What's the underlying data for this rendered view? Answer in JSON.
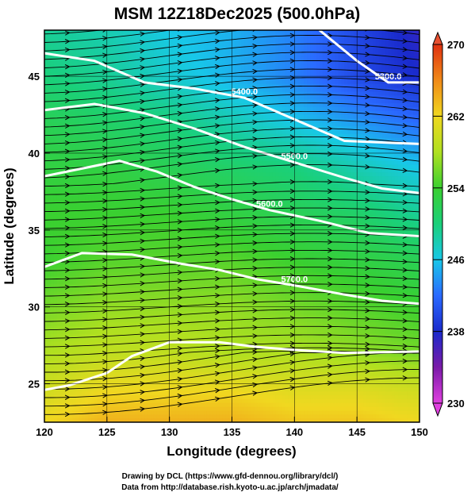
{
  "chart_data": {
    "type": "heatmap",
    "title": "MSM 12Z18Dec2025 (500.0hPa)",
    "xlabel": "Longitude (degrees)",
    "ylabel": "Latitude  (degrees)",
    "xlim": [
      120,
      150
    ],
    "ylim": [
      22.5,
      48
    ],
    "x_ticks": [
      "120",
      "125",
      "130",
      "135",
      "140",
      "145",
      "150"
    ],
    "y_ticks": [
      "25",
      "30",
      "35",
      "40",
      "45"
    ],
    "colorbar": {
      "min": 230,
      "max": 270,
      "ticks": [
        "230",
        "238",
        "246",
        "254",
        "262",
        "270"
      ]
    },
    "temperature_field": [
      {
        "lat": 48,
        "values": [
          249,
          248,
          246,
          245,
          243,
          240,
          237
        ]
      },
      {
        "lat": 45,
        "values": [
          250,
          249,
          247,
          245,
          243,
          240,
          238
        ]
      },
      {
        "lat": 42,
        "values": [
          252,
          251,
          250,
          248,
          246,
          244,
          242
        ]
      },
      {
        "lat": 39,
        "values": [
          253,
          253,
          252,
          251,
          250,
          248,
          246
        ]
      },
      {
        "lat": 36,
        "values": [
          254,
          254,
          254,
          253,
          252,
          251,
          249
        ]
      },
      {
        "lat": 33,
        "values": [
          254,
          255,
          255,
          255,
          254,
          253,
          252
        ]
      },
      {
        "lat": 30,
        "values": [
          256,
          257,
          257,
          257,
          256,
          255,
          254
        ]
      },
      {
        "lat": 27,
        "values": [
          258,
          259,
          259,
          258,
          258,
          257,
          256
        ]
      },
      {
        "lat": 24.5,
        "values": [
          260,
          262,
          262,
          262,
          261,
          261,
          260
        ]
      },
      {
        "lat": 22.5,
        "values": [
          262,
          264,
          264,
          264,
          263,
          263,
          262
        ]
      }
    ],
    "contours": [
      {
        "label": "5300.0",
        "points": [
          [
            142,
            48
          ],
          [
            145,
            46
          ],
          [
            147.5,
            44.6
          ],
          [
            150,
            44.6
          ]
        ]
      },
      {
        "label": "5400.0",
        "points": [
          [
            120,
            46.5
          ],
          [
            124,
            46
          ],
          [
            128,
            44.6
          ],
          [
            132,
            44.2
          ],
          [
            136,
            43.6
          ],
          [
            140,
            42.2
          ],
          [
            144,
            40.8
          ],
          [
            150,
            40.6
          ]
        ]
      },
      {
        "label": "5500.0",
        "points": [
          [
            120,
            42.8
          ],
          [
            124,
            43.2
          ],
          [
            128,
            42.6
          ],
          [
            132,
            41.6
          ],
          [
            136,
            40.4
          ],
          [
            140,
            39.4
          ],
          [
            144,
            38.4
          ],
          [
            147,
            37.7
          ],
          [
            150,
            37.4
          ]
        ]
      },
      {
        "label": "5600.0",
        "points": [
          [
            120,
            38.5
          ],
          [
            123,
            39
          ],
          [
            126,
            39.5
          ],
          [
            129,
            38.8
          ],
          [
            132,
            37.8
          ],
          [
            135,
            37
          ],
          [
            138,
            36.3
          ],
          [
            142,
            35.6
          ],
          [
            146,
            34.8
          ],
          [
            150,
            34.6
          ]
        ]
      },
      {
        "label": "5700.0",
        "points": [
          [
            120,
            32.6
          ],
          [
            123,
            33.5
          ],
          [
            127,
            33.4
          ],
          [
            131,
            32.8
          ],
          [
            134,
            32.4
          ],
          [
            137,
            31.8
          ],
          [
            140,
            31.4
          ],
          [
            144,
            30.8
          ],
          [
            147,
            30.4
          ],
          [
            150,
            30.2
          ]
        ]
      },
      {
        "label": "",
        "points": [
          [
            120,
            24.6
          ],
          [
            122,
            24.9
          ],
          [
            125,
            25.7
          ],
          [
            127,
            26.8
          ],
          [
            130,
            27.7
          ],
          [
            134,
            27.7
          ],
          [
            137,
            27.4
          ],
          [
            140,
            27.2
          ],
          [
            144,
            27
          ],
          [
            150,
            27.1
          ]
        ]
      }
    ],
    "credits": [
      "Drawing by DCL (https://www.gfd-dennou.org/library/dcl/)",
      "Data from http://database.rish.kyoto-u.ac.jp/arch/jmadata/"
    ]
  }
}
